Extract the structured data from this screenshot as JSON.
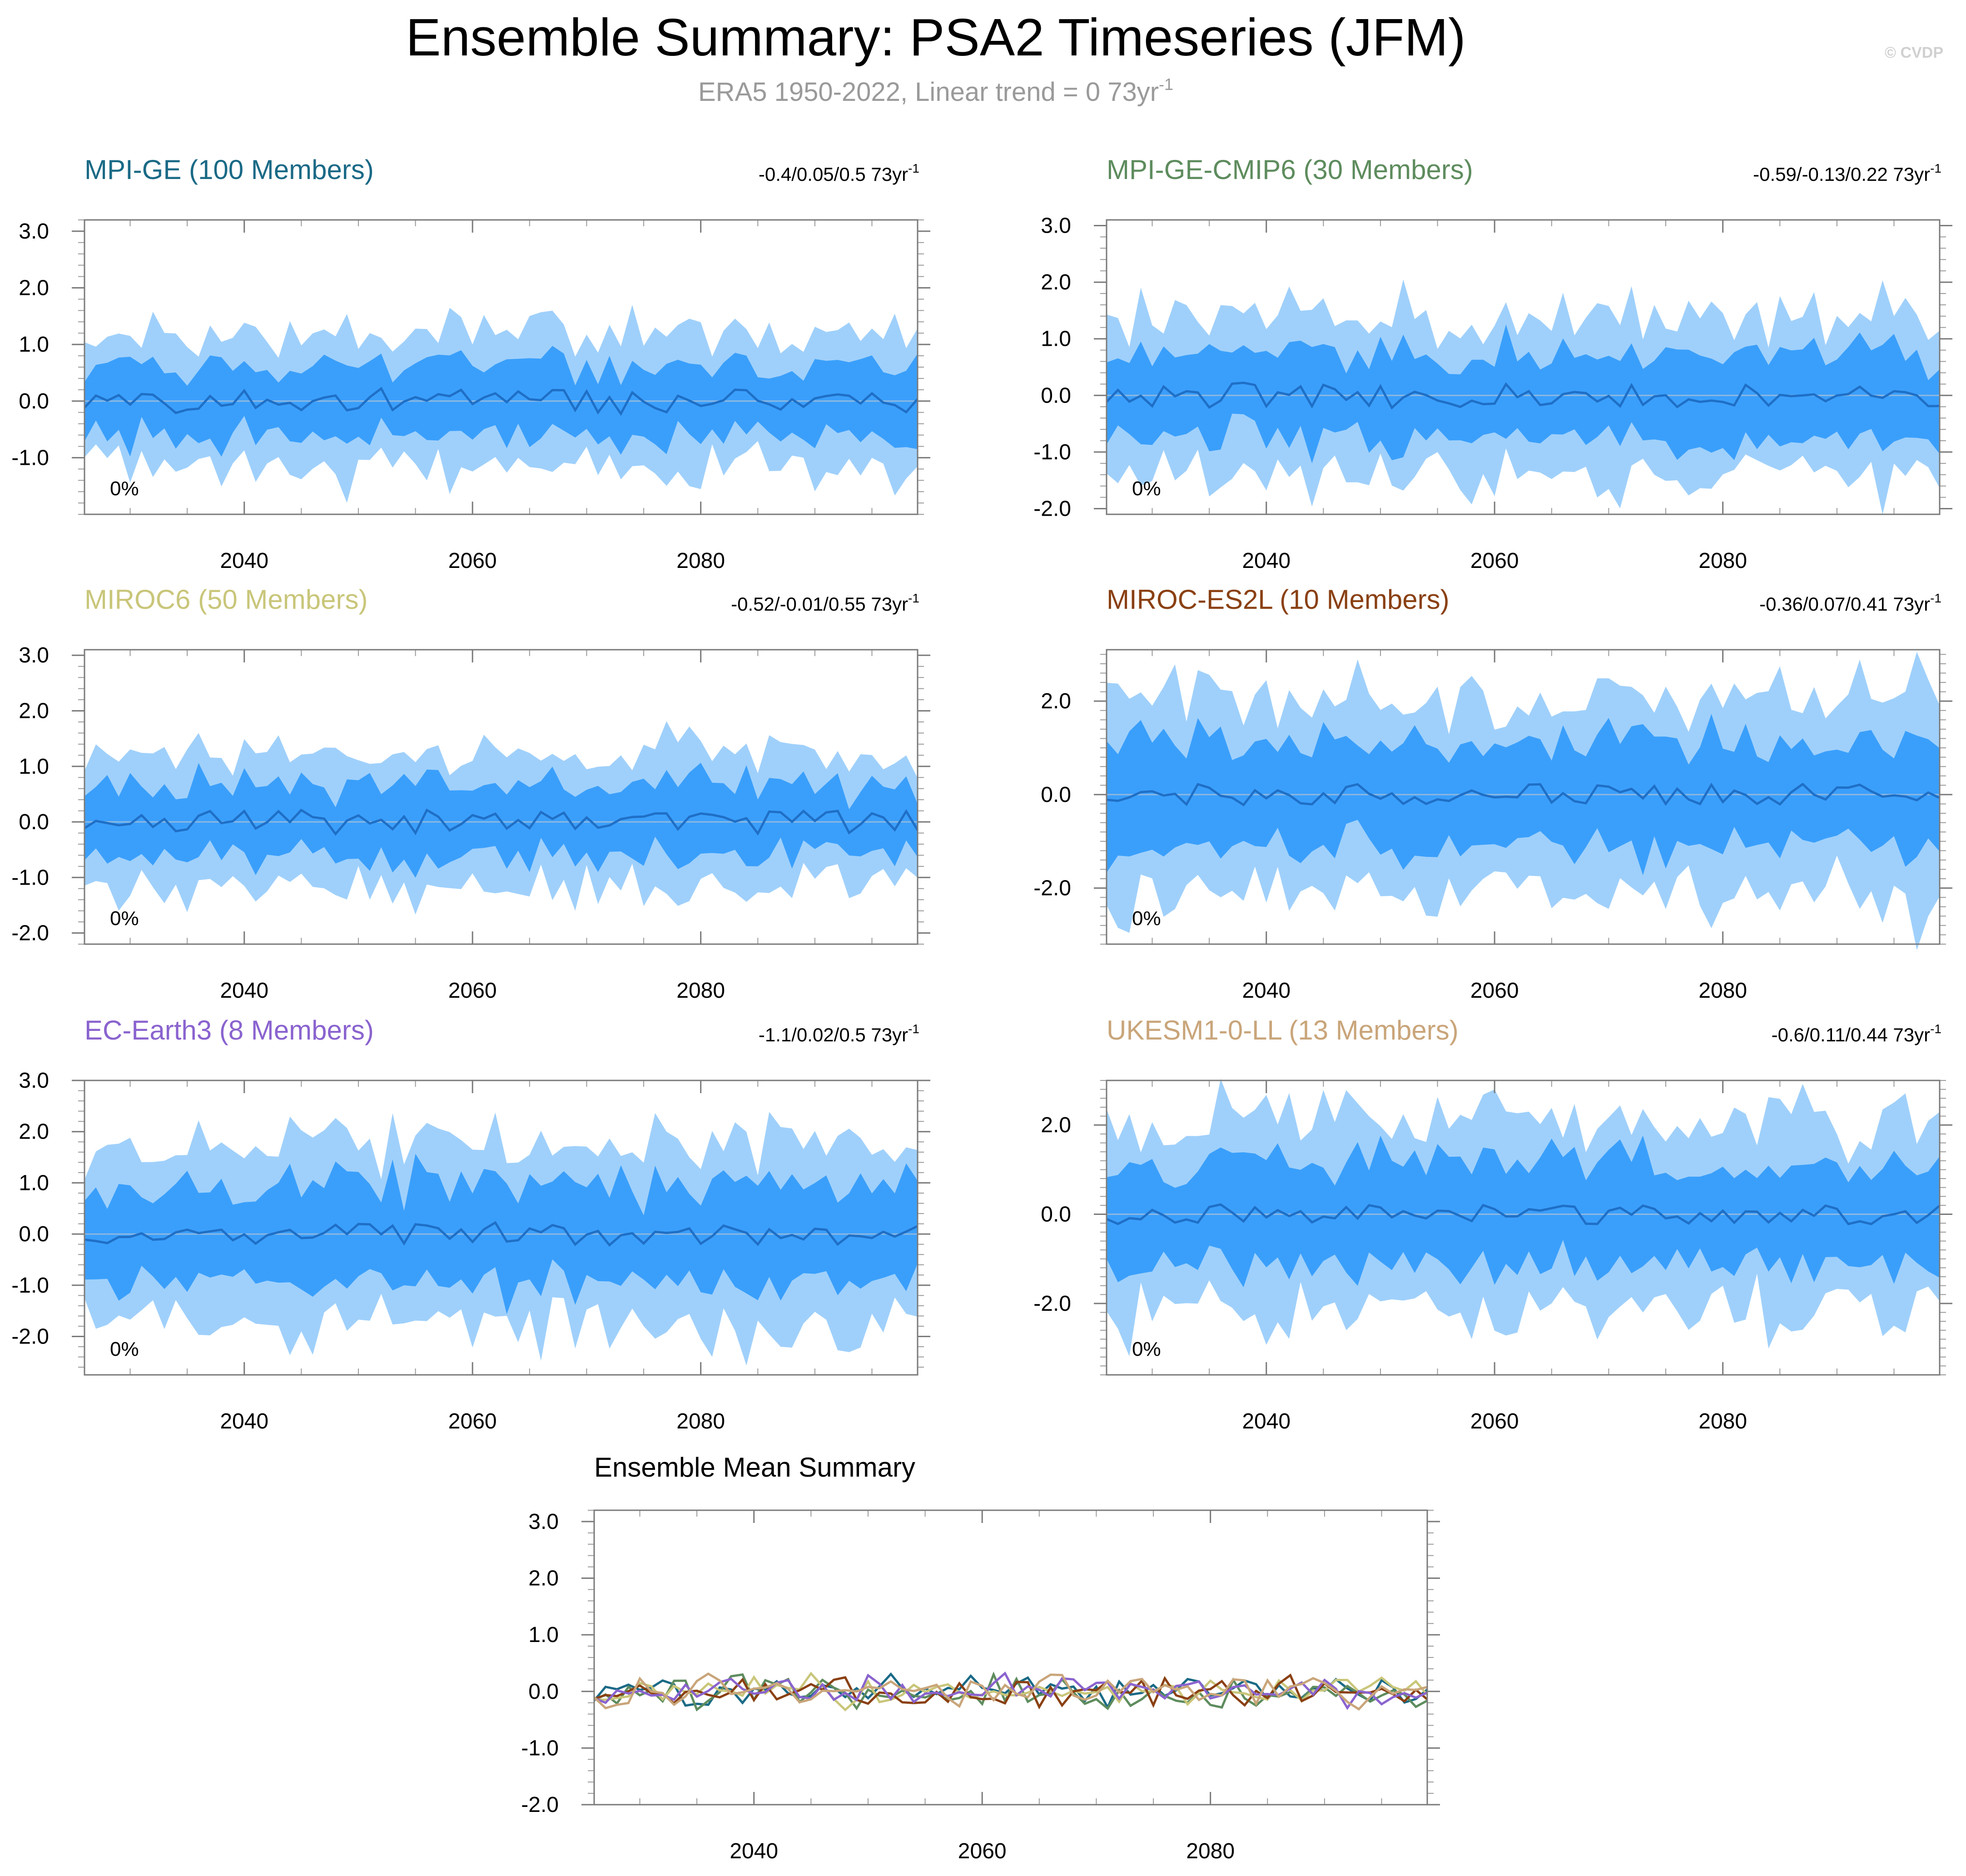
{
  "title": "Ensemble Summary: PSA2 Timeseries (JFM)",
  "subtitle_text": "ERA5 1950-2022, Linear trend = 0 73yr",
  "subtitle_sup": "-1",
  "credit": "© CVDP",
  "percent_label": "0%",
  "trend_unit": " 73yr",
  "trend_unit_sup": "-1",
  "colors": {
    "outer_band": "#9fd0fb",
    "inner_band": "#3a9ffb",
    "mean_line": "#1f6fc6",
    "zero_line": "#8fb8e0"
  },
  "x_range": [
    2026,
    2099
  ],
  "x_ticks": [
    "2040",
    "2060",
    "2080"
  ],
  "panels": [
    {
      "name": "MPI-GE (100 Members)",
      "color": "#1a6a86",
      "stats": "-0.4/0.05/0.5",
      "ylim": [
        -2.0,
        3.2
      ],
      "yticks": [
        "3.0",
        "2.0",
        "1.0",
        "0.0",
        "-1.0"
      ],
      "ytick_values": [
        3,
        2,
        1,
        0,
        -1
      ],
      "amp": 1.0,
      "seed": 11
    },
    {
      "name": "MPI-GE-CMIP6 (30 Members)",
      "color": "#5e8c5e",
      "stats": "-0.59/-0.13/0.22",
      "ylim": [
        -2.1,
        3.1
      ],
      "yticks": [
        "3.0",
        "2.0",
        "1.0",
        "0.0",
        "-1.0",
        "-2.0"
      ],
      "ytick_values": [
        3,
        2,
        1,
        0,
        -1,
        -2
      ],
      "amp": 1.2,
      "seed": 23
    },
    {
      "name": "MIROC6 (50 Members)",
      "color": "#c9c67a",
      "stats": "-0.52/-0.01/0.55",
      "ylim": [
        -2.2,
        3.1
      ],
      "yticks": [
        "3.0",
        "2.0",
        "1.0",
        "0.0",
        "-1.0",
        "-2.0"
      ],
      "ytick_values": [
        3,
        2,
        1,
        0,
        -1,
        -2
      ],
      "amp": 1.05,
      "seed": 37
    },
    {
      "name": "MIROC-ES2L (10 Members)",
      "color": "#8a4012",
      "stats": "-0.36/0.07/0.41",
      "ylim": [
        -3.2,
        3.1
      ],
      "yticks": [
        "2.0",
        "0.0",
        "-2.0"
      ],
      "ytick_values": [
        2,
        0,
        -2
      ],
      "amp": 1.8,
      "seed": 41
    },
    {
      "name": "EC-Earth3 (8 Members)",
      "color": "#8a63cf",
      "stats": "-1.1/0.02/0.5",
      "ylim": [
        -2.75,
        3.0
      ],
      "yticks": [
        "3.0",
        "2.0",
        "1.0",
        "0.0",
        "-1.0",
        "-2.0"
      ],
      "ytick_values": [
        3,
        2,
        1,
        0,
        -1,
        -2
      ],
      "amp": 1.5,
      "seed": 53
    },
    {
      "name": "UKESM1-0-LL (13 Members)",
      "color": "#c9a57a",
      "stats": "-0.6/0.11/0.44",
      "ylim": [
        -3.6,
        3.0
      ],
      "yticks": [
        "2.0",
        "0.0",
        "-2.0"
      ],
      "ytick_values": [
        2,
        0,
        -2
      ],
      "amp": 1.9,
      "seed": 67
    }
  ],
  "summary": {
    "title": "Ensemble Mean Summary",
    "ylim": [
      -2.0,
      3.2
    ],
    "yticks": [
      "3.0",
      "2.0",
      "1.0",
      "0.0",
      "-1.0",
      "-2.0"
    ],
    "ytick_values": [
      3,
      2,
      1,
      0,
      -1,
      -2
    ]
  },
  "chart_data": {
    "type": "area",
    "title": "Ensemble Summary: PSA2 Timeseries (JFM)",
    "xlabel": "",
    "ylabel": "",
    "x_range": [
      2026,
      2099
    ],
    "series": [
      {
        "name": "MPI-GE (100 Members)",
        "trend_min": -0.4,
        "trend_mean": 0.05,
        "trend_max": 0.5,
        "percent": "0%"
      },
      {
        "name": "MPI-GE-CMIP6 (30 Members)",
        "trend_min": -0.59,
        "trend_mean": -0.13,
        "trend_max": 0.22,
        "percent": "0%"
      },
      {
        "name": "MIROC6 (50 Members)",
        "trend_min": -0.52,
        "trend_mean": -0.01,
        "trend_max": 0.55,
        "percent": "0%"
      },
      {
        "name": "MIROC-ES2L (10 Members)",
        "trend_min": -0.36,
        "trend_mean": 0.07,
        "trend_max": 0.41,
        "percent": "0%"
      },
      {
        "name": "EC-Earth3 (8 Members)",
        "trend_min": -1.1,
        "trend_mean": 0.02,
        "trend_max": 0.5,
        "percent": "0%"
      },
      {
        "name": "UKESM1-0-LL (13 Members)",
        "trend_min": -0.6,
        "trend_mean": 0.11,
        "trend_max": 0.44,
        "percent": "0%"
      }
    ]
  }
}
